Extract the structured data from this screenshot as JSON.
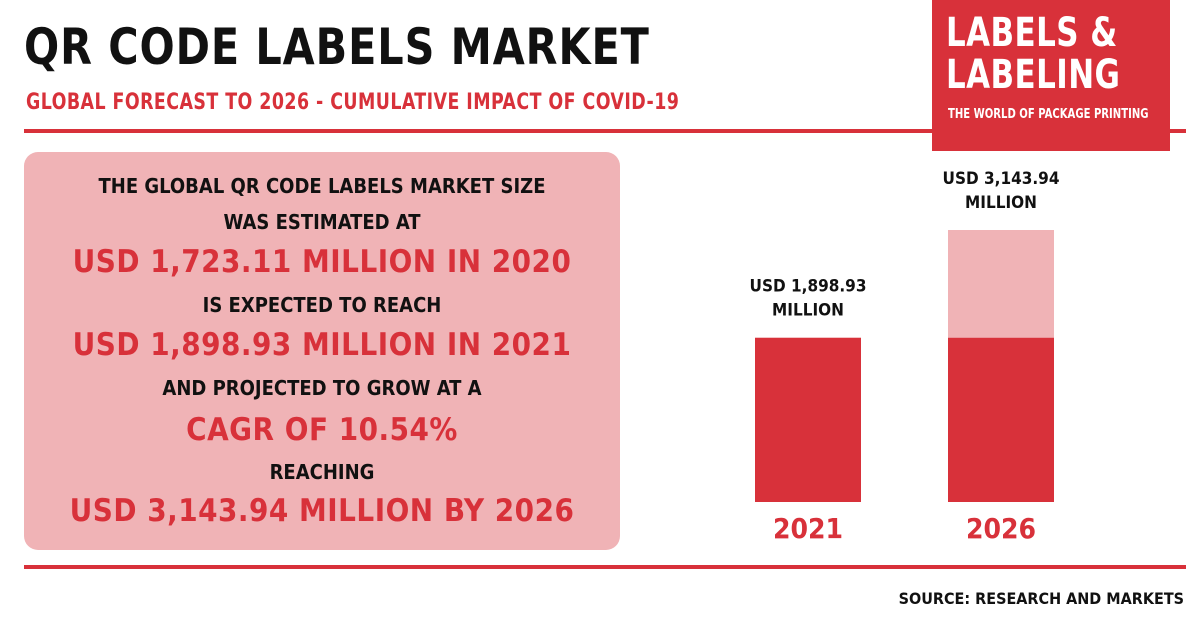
{
  "header": {
    "title": "QR CODE LABELS MARKET",
    "subtitle": "GLOBAL FORECAST TO 2026 - CUMULATIVE IMPACT OF COVID-19"
  },
  "logo": {
    "line1": "LABELS &",
    "line2": "LABELING",
    "tagline": "THE WORLD OF PACKAGE PRINTING"
  },
  "summary": {
    "lines": [
      "THE GLOBAL QR CODE LABELS MARKET SIZE",
      "WAS ESTIMATED AT",
      "USD 1,723.11 MILLION IN 2020",
      "IS EXPECTED TO REACH",
      "USD 1,898.93 MILLION IN 2021",
      "AND PROJECTED TO GROW AT A",
      "CAGR OF 10.54%",
      "REACHING",
      "USD 3,143.94 MILLION BY 2026"
    ]
  },
  "chart_data": {
    "type": "bar",
    "categories": [
      "2021",
      "2026"
    ],
    "values": [
      1898.93,
      3143.94
    ],
    "data_labels": [
      [
        "USD 1,898.93",
        "MILLION"
      ],
      [
        "USD 3,143.94",
        "MILLION"
      ]
    ],
    "unit": "USD Million",
    "colors": {
      "bar": "#d8313a",
      "growth": "#f0b3b6"
    },
    "ylim": [
      0,
      3143.94
    ]
  },
  "footer": {
    "source": "SOURCE: RESEARCH AND MARKETS"
  },
  "colors": {
    "accent": "#d8313a",
    "panel": "#f0b3b6",
    "text": "#111111"
  }
}
